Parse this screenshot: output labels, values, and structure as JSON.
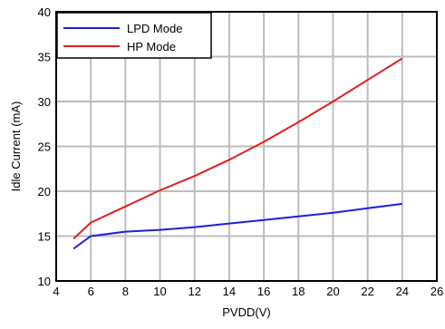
{
  "chart_data": {
    "type": "line",
    "title": "",
    "xlabel": "PVDD(V)",
    "ylabel": "Idle Current (mA)",
    "xlim": [
      4,
      26
    ],
    "ylim": [
      10,
      40
    ],
    "xticks": [
      4,
      6,
      8,
      10,
      12,
      14,
      16,
      18,
      20,
      22,
      24,
      26
    ],
    "yticks": [
      10,
      15,
      20,
      25,
      30,
      35,
      40
    ],
    "grid": true,
    "legend_position": "top-left",
    "series": [
      {
        "name": "LPD Mode",
        "color": "#1f1fe0",
        "x": [
          5,
          6,
          8,
          10,
          12,
          14,
          16,
          18,
          20,
          22,
          24
        ],
        "y": [
          13.6,
          15.0,
          15.5,
          15.7,
          16.0,
          16.4,
          16.8,
          17.2,
          17.6,
          18.1,
          18.6
        ]
      },
      {
        "name": "HP Mode",
        "color": "#e01f1f",
        "x": [
          5,
          6,
          8,
          10,
          12,
          14,
          16,
          18,
          20,
          22,
          24
        ],
        "y": [
          14.7,
          16.5,
          18.3,
          20.1,
          21.7,
          23.5,
          25.5,
          27.7,
          30.0,
          32.4,
          34.8
        ]
      }
    ]
  }
}
